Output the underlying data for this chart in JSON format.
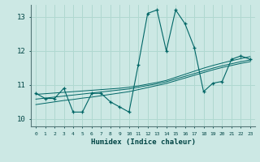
{
  "xlabel": "Humidex (Indice chaleur)",
  "background_color": "#cce8e4",
  "line_color": "#006666",
  "grid_color": "#b0d8d0",
  "xlim": [
    -0.5,
    23.5
  ],
  "ylim": [
    9.78,
    13.35
  ],
  "yticks": [
    10,
    11,
    12,
    13
  ],
  "xticks": [
    0,
    1,
    2,
    3,
    4,
    5,
    6,
    7,
    8,
    9,
    10,
    11,
    12,
    13,
    14,
    15,
    16,
    17,
    18,
    19,
    20,
    21,
    22,
    23
  ],
  "main_y": [
    10.75,
    10.6,
    10.6,
    10.9,
    10.2,
    10.2,
    10.75,
    10.75,
    10.5,
    10.35,
    10.2,
    11.6,
    13.1,
    13.2,
    12.0,
    13.2,
    12.8,
    12.1,
    10.8,
    11.05,
    11.1,
    11.75,
    11.85,
    11.75
  ],
  "trend1_y": [
    10.72,
    10.74,
    10.76,
    10.78,
    10.8,
    10.82,
    10.84,
    10.86,
    10.88,
    10.9,
    10.93,
    10.97,
    11.02,
    11.07,
    11.13,
    11.22,
    11.31,
    11.4,
    11.49,
    11.57,
    11.64,
    11.71,
    11.77,
    11.83
  ],
  "trend2_y": [
    10.58,
    10.61,
    10.64,
    10.67,
    10.7,
    10.73,
    10.76,
    10.79,
    10.82,
    10.85,
    10.88,
    10.93,
    10.98,
    11.03,
    11.09,
    11.17,
    11.25,
    11.33,
    11.41,
    11.49,
    11.56,
    11.62,
    11.68,
    11.73
  ],
  "trend3_y": [
    10.42,
    10.46,
    10.5,
    10.54,
    10.57,
    10.61,
    10.64,
    10.68,
    10.72,
    10.76,
    10.8,
    10.86,
    10.92,
    10.98,
    11.04,
    11.12,
    11.2,
    11.28,
    11.36,
    11.44,
    11.51,
    11.57,
    11.63,
    11.68
  ]
}
